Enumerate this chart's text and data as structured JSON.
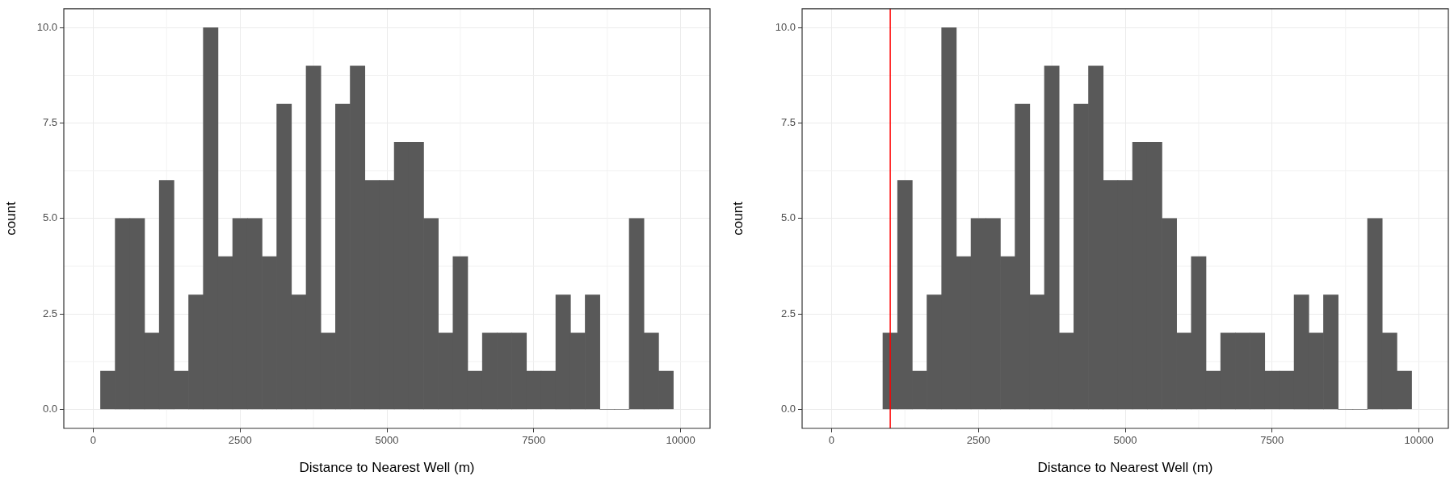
{
  "chart_data": [
    {
      "type": "histogram",
      "bins": [
        125,
        375,
        625,
        875,
        1125,
        1375,
        1625,
        1875,
        2125,
        2375,
        2625,
        2875,
        3125,
        3375,
        3625,
        3875,
        4125,
        4375,
        4625,
        4875,
        5125,
        5375,
        5625,
        5875,
        6125,
        6375,
        6625,
        6875,
        7125,
        7375,
        7625,
        7875,
        8125,
        8375,
        8625,
        8875,
        9125,
        9375,
        9625,
        9875
      ],
      "values": [
        1,
        5,
        5,
        2,
        6,
        1,
        3,
        10,
        4,
        5,
        5,
        4,
        8,
        3,
        9,
        2,
        8,
        9,
        6,
        6,
        7,
        7,
        5,
        2,
        4,
        1,
        2,
        2,
        2,
        1,
        1,
        3,
        2,
        3,
        0,
        0,
        5,
        2,
        1
      ],
      "color": "#595959",
      "xlim": [
        -500,
        10500
      ],
      "ylim": [
        -0.5,
        10.5
      ],
      "xticks": [
        0,
        2500,
        5000,
        7500,
        10000
      ],
      "yticks": [
        {
          "value": 0,
          "label": "0.0"
        },
        {
          "value": 2.5,
          "label": "2.5"
        },
        {
          "value": 5,
          "label": "5.0"
        },
        {
          "value": 7.5,
          "label": "7.5"
        },
        {
          "value": 10,
          "label": "10.0"
        }
      ],
      "xlabel": "Distance to Nearest Well (m)",
      "ylabel": "count",
      "grid": true
    },
    {
      "type": "histogram",
      "bins": [
        875,
        1125,
        1375,
        1625,
        1875,
        2125,
        2375,
        2625,
        2875,
        3125,
        3375,
        3625,
        3875,
        4125,
        4375,
        4625,
        4875,
        5125,
        5375,
        5625,
        5875,
        6125,
        6375,
        6625,
        6875,
        7125,
        7375,
        7625,
        7875,
        8125,
        8375,
        8625,
        8875,
        9125,
        9375,
        9625,
        9875
      ],
      "values": [
        2,
        6,
        1,
        3,
        10,
        4,
        5,
        5,
        4,
        8,
        3,
        9,
        2,
        8,
        9,
        6,
        6,
        7,
        7,
        5,
        2,
        4,
        1,
        2,
        2,
        2,
        1,
        1,
        3,
        2,
        3,
        0,
        0,
        5,
        2,
        1
      ],
      "color": "#595959",
      "xlim": [
        -500,
        10500
      ],
      "ylim": [
        -0.5,
        10.5
      ],
      "xticks": [
        0,
        2500,
        5000,
        7500,
        10000
      ],
      "yticks": [
        {
          "value": 0,
          "label": "0.0"
        },
        {
          "value": 2.5,
          "label": "2.5"
        },
        {
          "value": 5,
          "label": "5.0"
        },
        {
          "value": 7.5,
          "label": "7.5"
        },
        {
          "value": 10,
          "label": "10.0"
        }
      ],
      "xlabel": "Distance to Nearest Well (m)",
      "ylabel": "count",
      "grid": true,
      "ref_lines": [
        {
          "axis": "x",
          "value": 1000,
          "color": "#ff0000"
        }
      ]
    }
  ]
}
